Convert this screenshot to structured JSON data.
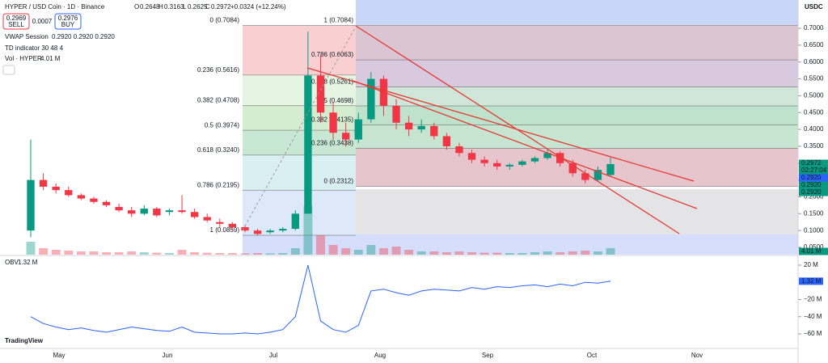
{
  "header": {
    "symbol": "HYPER / USD Coin · 1D · Binance",
    "o": "O",
    "h": "H",
    "l": "L",
    "c": "C",
    "change": "+0.0324 (+12.24%)",
    "sell_price": "0.2969",
    "sell": "SELL",
    "spread": "0.0007",
    "buy_price": "0.2976",
    "buy": "BUY",
    "vwap": "VWAP Session",
    "vwap_values": "0.2920  0.2920  0.2920",
    "td": "TD indicator 30 48 4",
    "vol": "Vol · HYPER",
    "vol_value": "4.01 M",
    "currency": "USDC",
    "logo": "TradingView",
    "months": [
      "May",
      "Jun",
      "Jul",
      "Aug",
      "Sep",
      "Oct",
      "Nov"
    ],
    "badges": {
      "last": "0.2972",
      "countdown": "02:27:04",
      "blue": "0.2920",
      "green1": "0.2920",
      "green2": "0.2920",
      "volume": "4.01 M"
    },
    "obv_label": "OBV",
    "obv_value": "1.32 M"
  },
  "chart_data": [
    {
      "type": "candlestick",
      "ylim": [
        0.0284,
        0.784
      ],
      "yticks": [
        {
          "value": 0.7,
          "label": "0.7000"
        },
        {
          "value": 0.65,
          "label": "0.6500"
        },
        {
          "value": 0.6,
          "label": "0.6000"
        },
        {
          "value": 0.55,
          "label": "0.5500"
        },
        {
          "value": 0.5,
          "label": "0.5000"
        },
        {
          "value": 0.45,
          "label": "0.4500"
        },
        {
          "value": 0.4,
          "label": "0.4000"
        },
        {
          "value": 0.35,
          "label": "0.3500"
        },
        {
          "value": 0.3,
          "label": "0.3000"
        },
        {
          "value": 0.25,
          "label": "0.2500"
        },
        {
          "value": 0.2,
          "label": "0.2000"
        },
        {
          "value": 0.15,
          "label": "0.1500"
        },
        {
          "value": 0.1,
          "label": "0.1000"
        },
        {
          "value": 0.05,
          "label": "0.0500"
        }
      ],
      "up_color": "#089981",
      "down_color": "#f23645",
      "candles": [
        [
          0.1,
          0.37,
          0.08,
          0.25
        ],
        [
          0.25,
          0.27,
          0.22,
          0.23
        ],
        [
          0.23,
          0.24,
          0.21,
          0.22
        ],
        [
          0.22,
          0.23,
          0.2,
          0.205
        ],
        [
          0.205,
          0.21,
          0.19,
          0.195
        ],
        [
          0.195,
          0.2,
          0.18,
          0.185
        ],
        [
          0.185,
          0.19,
          0.17,
          0.175
        ],
        [
          0.17,
          0.18,
          0.155,
          0.16
        ],
        [
          0.16,
          0.17,
          0.14,
          0.15
        ],
        [
          0.15,
          0.175,
          0.145,
          0.165
        ],
        [
          0.165,
          0.17,
          0.14,
          0.145
        ],
        [
          0.155,
          0.165,
          0.145,
          0.16
        ],
        [
          0.16,
          0.205,
          0.15,
          0.155
        ],
        [
          0.155,
          0.165,
          0.135,
          0.14
        ],
        [
          0.14,
          0.15,
          0.125,
          0.13
        ],
        [
          0.125,
          0.135,
          0.11,
          0.12
        ],
        [
          0.12,
          0.125,
          0.1,
          0.11
        ],
        [
          0.11,
          0.115,
          0.095,
          0.1
        ],
        [
          0.1,
          0.105,
          0.085,
          0.09
        ],
        [
          0.095,
          0.105,
          0.09,
          0.1
        ],
        [
          0.1,
          0.11,
          0.095,
          0.105
        ],
        [
          0.105,
          0.16,
          0.1,
          0.15
        ],
        [
          0.15,
          0.69,
          0.15,
          0.56
        ],
        [
          0.56,
          0.62,
          0.42,
          0.45
        ],
        [
          0.45,
          0.48,
          0.37,
          0.39
        ],
        [
          0.39,
          0.42,
          0.35,
          0.37
        ],
        [
          0.37,
          0.45,
          0.36,
          0.43
        ],
        [
          0.43,
          0.57,
          0.42,
          0.55
        ],
        [
          0.55,
          0.56,
          0.44,
          0.47
        ],
        [
          0.47,
          0.49,
          0.4,
          0.42
        ],
        [
          0.42,
          0.44,
          0.38,
          0.4
        ],
        [
          0.4,
          0.43,
          0.39,
          0.41
        ],
        [
          0.41,
          0.42,
          0.37,
          0.38
        ],
        [
          0.38,
          0.39,
          0.34,
          0.35
        ],
        [
          0.35,
          0.36,
          0.32,
          0.33
        ],
        [
          0.33,
          0.34,
          0.3,
          0.31
        ],
        [
          0.31,
          0.32,
          0.29,
          0.3
        ],
        [
          0.3,
          0.31,
          0.28,
          0.29
        ],
        [
          0.29,
          0.3,
          0.28,
          0.295
        ],
        [
          0.295,
          0.31,
          0.29,
          0.305
        ],
        [
          0.305,
          0.32,
          0.3,
          0.315
        ],
        [
          0.315,
          0.34,
          0.31,
          0.33
        ],
        [
          0.33,
          0.335,
          0.29,
          0.3
        ],
        [
          0.3,
          0.31,
          0.26,
          0.27
        ],
        [
          0.27,
          0.28,
          0.24,
          0.25
        ],
        [
          0.25,
          0.29,
          0.245,
          0.28
        ],
        [
          0.2648,
          0.3163,
          0.2625,
          0.2972
        ]
      ],
      "volume": [
        8,
        4,
        3,
        2.5,
        2,
        2,
        1.5,
        1.5,
        2,
        1.5,
        1.2,
        1,
        3,
        1.5,
        1.2,
        1,
        1,
        0.8,
        1,
        0.8,
        1,
        4,
        30,
        12,
        6,
        4,
        3,
        6,
        4,
        5,
        3,
        2,
        2,
        1.5,
        2,
        1.5,
        1.2,
        1.2,
        1,
        1,
        1.5,
        2,
        1.5,
        2,
        2.5,
        2,
        4.01
      ],
      "fib_left": [
        {
          "value": 0.7084,
          "label": "0 (0.7084)",
          "color": "#f9cfd2",
          "label_color": "#555"
        },
        {
          "value": 0.5616,
          "label": "0.236 (0.5616)",
          "color": "#e6f4e2",
          "label_color": "#e04545"
        },
        {
          "value": 0.4708,
          "label": "0.382 (0.4708)",
          "color": "#d4ecd0",
          "label_color": "#5a9e3a"
        },
        {
          "value": 0.3974,
          "label": "0.5 (0.3974)",
          "color": "#c9e8d3",
          "label_color": "#3b8e3b"
        },
        {
          "value": 0.324,
          "label": "0.618 (0.3240)",
          "color": "#d9eff1",
          "label_color": "#1f7a6a"
        },
        {
          "value": 0.2195,
          "label": "0.786 (0.2195)",
          "color": "#dde9f8",
          "label_color": "#4a7bbd"
        },
        {
          "value": 0.0859,
          "label": "1 (0.0859)",
          "color": "none",
          "label_color": "#555"
        }
      ],
      "fib_right": [
        {
          "value": 0.7084,
          "label": "1 (0.7084)",
          "color": "#dcc5d2",
          "label_color": "#555"
        },
        {
          "value": 0.6063,
          "label": "0.786 (0.6063)",
          "color": "#d8c9df",
          "label_color": "#5b7fc7"
        },
        {
          "value": 0.5261,
          "label": "0.618 (0.5261)",
          "color": "#cfe6d8",
          "label_color": "#1f6a5a"
        },
        {
          "value": 0.4698,
          "label": "0.5 (0.4698)",
          "color": "#bfe2cc",
          "label_color": "#3b8e3b"
        },
        {
          "value": 0.4135,
          "label": "0.382 (0.4135)",
          "color": "#c7e5d0",
          "label_color": "#5a9e3a"
        },
        {
          "value": 0.3438,
          "label": "0.236 (0.3438)",
          "color": "#e7c5cd",
          "label_color": "#c03030"
        },
        {
          "value": 0.2312,
          "label": "0 (0.2312)",
          "color": "none",
          "label_color": "#555"
        }
      ]
    },
    {
      "type": "line",
      "name": "OBV",
      "color": "#2962ff",
      "ylim": [
        -76,
        29.4
      ],
      "yticks": [
        {
          "value": 20,
          "label": "20 M"
        },
        {
          "value": -20,
          "label": "−20 M"
        },
        {
          "value": -40,
          "label": "−40 M"
        },
        {
          "value": -60,
          "label": "−60 M"
        }
      ],
      "values": [
        -40,
        -48,
        -52,
        -55,
        -53,
        -56,
        -58,
        -55,
        -52,
        -54,
        -56,
        -57,
        -52,
        -58,
        -59,
        -60,
        -60,
        -59,
        -60,
        -58,
        -55,
        -40,
        20,
        -45,
        -55,
        -58,
        -50,
        -10,
        -8,
        -12,
        -15,
        -10,
        -8,
        -9,
        -10,
        -6,
        -8,
        -5,
        -6,
        -4,
        -3,
        -5,
        -2,
        -4,
        0,
        -1,
        1.32
      ]
    }
  ]
}
